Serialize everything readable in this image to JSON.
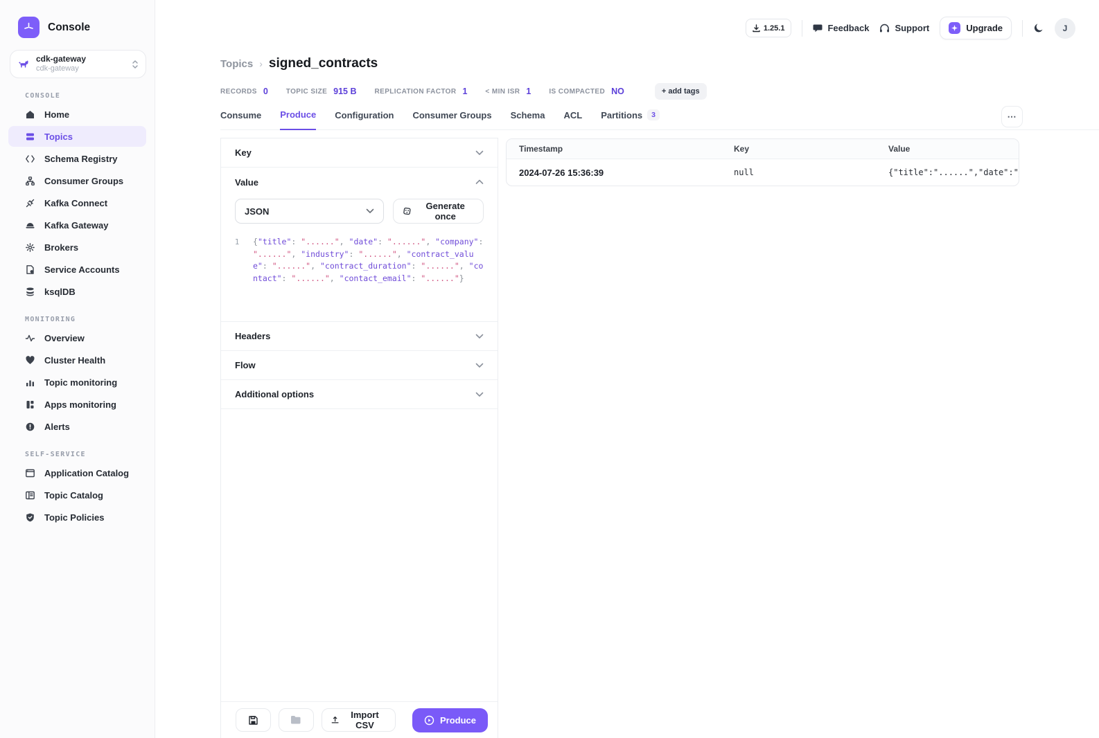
{
  "app": {
    "name": "Console",
    "version": "1.25.1"
  },
  "topbar": {
    "feedback_label": "Feedback",
    "support_label": "Support",
    "upgrade_label": "Upgrade",
    "avatar_initial": "J"
  },
  "sidebar": {
    "cluster": {
      "name": "cdk-gateway",
      "sub": "cdk-gateway"
    },
    "sections": [
      {
        "label": "CONSOLE",
        "items": [
          {
            "icon": "home-icon",
            "label": "Home",
            "active": false
          },
          {
            "icon": "topics-icon",
            "label": "Topics",
            "active": true
          },
          {
            "icon": "schema-registry-icon",
            "label": "Schema Registry",
            "active": false
          },
          {
            "icon": "consumer-groups-icon",
            "label": "Consumer Groups",
            "active": false
          },
          {
            "icon": "kafka-connect-icon",
            "label": "Kafka Connect",
            "active": false
          },
          {
            "icon": "kafka-gateway-icon",
            "label": "Kafka Gateway",
            "active": false
          },
          {
            "icon": "brokers-icon",
            "label": "Brokers",
            "active": false
          },
          {
            "icon": "service-accounts-icon",
            "label": "Service Accounts",
            "active": false
          },
          {
            "icon": "ksqldb-icon",
            "label": "ksqlDB",
            "active": false
          }
        ]
      },
      {
        "label": "MONITORING",
        "items": [
          {
            "icon": "overview-icon",
            "label": "Overview",
            "active": false
          },
          {
            "icon": "cluster-health-icon",
            "label": "Cluster Health",
            "active": false
          },
          {
            "icon": "topic-monitoring-icon",
            "label": "Topic monitoring",
            "active": false
          },
          {
            "icon": "apps-monitoring-icon",
            "label": "Apps monitoring",
            "active": false
          },
          {
            "icon": "alerts-icon",
            "label": "Alerts",
            "active": false
          }
        ]
      },
      {
        "label": "SELF-SERVICE",
        "items": [
          {
            "icon": "application-catalog-icon",
            "label": "Application Catalog",
            "active": false
          },
          {
            "icon": "topic-catalog-icon",
            "label": "Topic Catalog",
            "active": false
          },
          {
            "icon": "topic-policies-icon",
            "label": "Topic Policies",
            "active": false
          }
        ]
      }
    ]
  },
  "breadcrumb": {
    "parent": "Topics",
    "current": "signed_contracts"
  },
  "stats": [
    {
      "label": "RECORDS",
      "value": "0"
    },
    {
      "label": "TOPIC SIZE",
      "value": "915 B"
    },
    {
      "label": "REPLICATION FACTOR",
      "value": "1"
    },
    {
      "label": "< MIN ISR",
      "value": "1"
    },
    {
      "label": "IS COMPACTED",
      "value": "NO"
    }
  ],
  "add_tags_label": "+ add tags",
  "tabs": [
    {
      "label": "Consume",
      "active": false
    },
    {
      "label": "Produce",
      "active": true
    },
    {
      "label": "Configuration",
      "active": false
    },
    {
      "label": "Consumer Groups",
      "active": false
    },
    {
      "label": "Schema",
      "active": false
    },
    {
      "label": "ACL",
      "active": false
    },
    {
      "label": "Partitions",
      "active": false,
      "badge": "3"
    }
  ],
  "more_label": "...",
  "produce_panel": {
    "key_label": "Key",
    "value_label": "Value",
    "headers_label": "Headers",
    "flow_label": "Flow",
    "additional_label": "Additional options",
    "serializer_selected": "JSON",
    "generate_once_label": "Generate once",
    "editor": {
      "line_number": "1",
      "fields": [
        "title",
        "date",
        "company",
        "industry",
        "contract_value",
        "contract_duration",
        "contact",
        "contact_email"
      ],
      "value_placeholder": "......"
    },
    "footer": {
      "import_csv_label": "Import CSV",
      "produce_label": "Produce"
    }
  },
  "table": {
    "columns": [
      "Timestamp",
      "Key",
      "Value"
    ],
    "rows": [
      {
        "timestamp": "2024-07-26 15:36:39",
        "key": "null",
        "value": "{\"title\":\"......\",\"date\":\"_"
      }
    ]
  },
  "colors": {
    "accent_text": "#6B4EE6",
    "accent_fill": "#7A5AF8",
    "json_key": "#6F4BD8",
    "json_string": "#D0527F"
  }
}
